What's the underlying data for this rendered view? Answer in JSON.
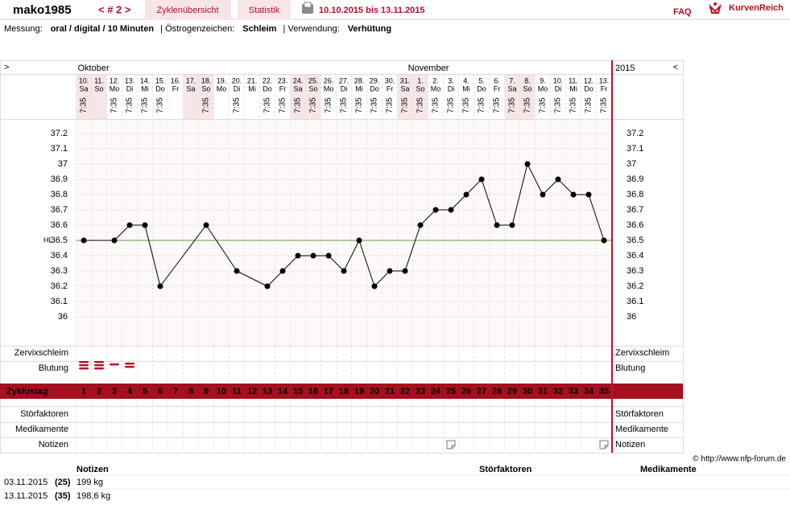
{
  "header": {
    "user": "mako1985",
    "cycle_nav": "< # 2 >",
    "tabs": [
      "Zyklenübersicht",
      "Statistik"
    ],
    "date_range": "10.10.2015 bis 13.11.2015",
    "faq": "FAQ",
    "brand": "KurvenReich"
  },
  "info": [
    {
      "label": "Messung:",
      "value": "oral / digital / 10 Minuten"
    },
    {
      "label": "Östrogenzeichen:",
      "value": "Schleim"
    },
    {
      "label": "Verwendung:",
      "value": "Verhütung"
    }
  ],
  "chart_data": {
    "type": "line",
    "nav_prev": ">",
    "nav_next": "<",
    "months": [
      "Oktober",
      "November"
    ],
    "year": "2015",
    "dates": [
      "10.",
      "11.",
      "12.",
      "13.",
      "14.",
      "15.",
      "16.",
      "17.",
      "18.",
      "19.",
      "20.",
      "21.",
      "22.",
      "23.",
      "24.",
      "25.",
      "26.",
      "27.",
      "28.",
      "29.",
      "30.",
      "31.",
      "1.",
      "2.",
      "3.",
      "4.",
      "5.",
      "6.",
      "7.",
      "8.",
      "9.",
      "10.",
      "11.",
      "12.",
      "13."
    ],
    "weekdays": [
      "Sa",
      "So",
      "Mo",
      "Di",
      "Mi",
      "Do",
      "Fr",
      "Sa",
      "So",
      "Mo",
      "Di",
      "Mi",
      "Do",
      "Fr",
      "Sa",
      "So",
      "Mo",
      "Di",
      "Mi",
      "Do",
      "Fr",
      "Sa",
      "So",
      "Mo",
      "Di",
      "Mi",
      "Do",
      "Fr",
      "Sa",
      "So",
      "Mo",
      "Di",
      "Mi",
      "Do",
      "Fr"
    ],
    "times": [
      "7:35",
      null,
      "7:35",
      "7:35",
      "7:35",
      "7:35",
      null,
      null,
      "7:35",
      null,
      "7:35",
      null,
      "7:35",
      "7:35",
      "7:35",
      "7:35",
      "7:35",
      "7:35",
      "7:35",
      "7:35",
      "7:35",
      "7:35",
      "7:35",
      "7:35",
      "7:35",
      "7:35",
      "7:35",
      "7:35",
      "7:35",
      "7:35",
      "7:35",
      "7:35",
      "7:35",
      "7:35",
      "7:35"
    ],
    "values": [
      36.5,
      null,
      36.5,
      36.6,
      36.6,
      36.2,
      null,
      null,
      36.6,
      null,
      36.3,
      null,
      36.2,
      36.3,
      36.4,
      36.4,
      36.4,
      36.3,
      36.5,
      36.2,
      36.3,
      36.3,
      36.6,
      36.7,
      36.7,
      36.8,
      36.9,
      36.6,
      36.6,
      37.0,
      36.8,
      36.9,
      36.8,
      36.8,
      36.5
    ],
    "color": "#000000",
    "ylim": [
      35.9,
      37.3
    ],
    "yticks": [
      36,
      36.1,
      36.2,
      36.3,
      36.4,
      36.5,
      36.6,
      36.7,
      36.8,
      36.9,
      {
        "value": 37,
        "label": "37"
      },
      37.1,
      37.2
    ],
    "coverline": {
      "label": "HL",
      "value": 36.5,
      "color": "#6a9a3a"
    },
    "cycle_days": [
      1,
      2,
      3,
      4,
      5,
      6,
      7,
      8,
      9,
      10,
      11,
      12,
      13,
      14,
      15,
      16,
      17,
      18,
      19,
      20,
      21,
      22,
      23,
      24,
      25,
      26,
      27,
      28,
      29,
      30,
      31,
      32,
      33,
      34,
      35
    ],
    "rows": {
      "cervix": "Zervixschleim",
      "bleeding": "Blutung",
      "cycle_day": "Zyklustag",
      "disturbances": "Störfaktoren",
      "medication": "Medikamente",
      "notes": "Notizen"
    }
  },
  "copyright": "© http://www.nfp-forum.de",
  "notes_table": {
    "headers": [
      "Notizen",
      "Störfaktoren",
      "Medikamente"
    ],
    "rows": [
      [
        "03.11.2015",
        "(25)",
        "199 kg"
      ],
      [
        "13.11.2015",
        "(35)",
        "198,6 kg"
      ]
    ]
  }
}
